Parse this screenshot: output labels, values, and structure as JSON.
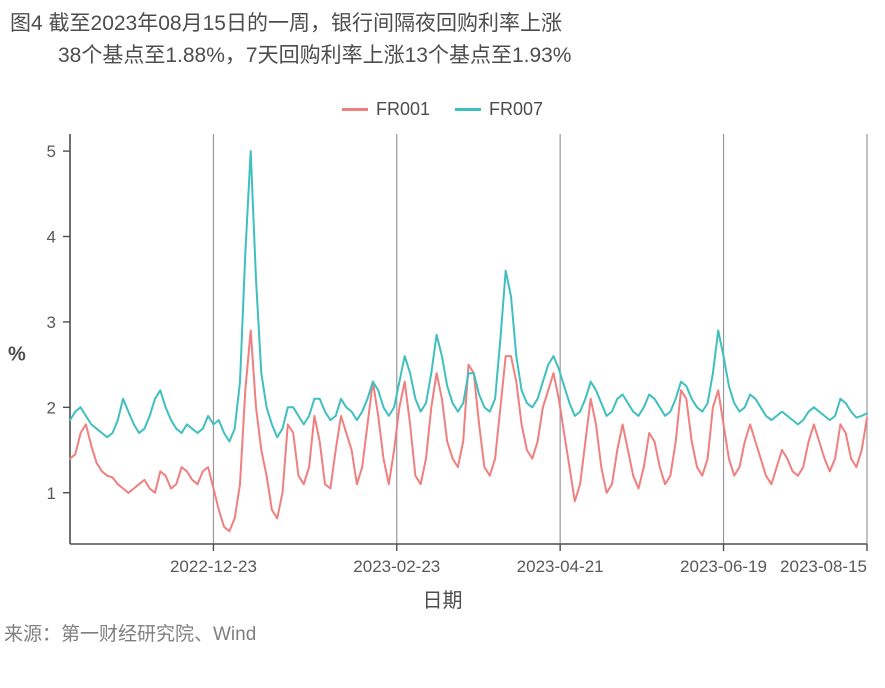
{
  "chart": {
    "type": "line",
    "title_line1": "图4 截至2023年08月15日的一周，银行间隔夜回购利率上涨",
    "title_line2": "38个基点至1.88%，7天回购利率上涨13个基点至1.93%",
    "title_fontsize": 21,
    "title_color": "#4d4d4d",
    "background_color": "#ffffff",
    "plot_background": "#ffffff",
    "ylabel": "%",
    "xlabel": "日期",
    "label_fontsize": 20,
    "ylim": [
      0.4,
      5.2
    ],
    "ytick_values": [
      1,
      2,
      3,
      4,
      5
    ],
    "xtick_labels": [
      "2022-12-23",
      "2023-02-23",
      "2023-04-21",
      "2023-06-19",
      "2023-08-15"
    ],
    "xtick_positions": [
      0.18,
      0.41,
      0.615,
      0.82,
      1.0
    ],
    "tick_fontsize": 17,
    "tick_color": "#595959",
    "grid_major_vcolor": "#999999",
    "grid_major_vwidth": 1.2,
    "axis_line_color": "#4d4d4d",
    "axis_line_width": 1.6,
    "line_width": 2,
    "legend": {
      "items": [
        {
          "label": "FR001",
          "color": "#f07f7f"
        },
        {
          "label": "FR007",
          "color": "#3fbfbf"
        }
      ],
      "position": "top",
      "fontsize": 18
    },
    "series": {
      "FR001": {
        "color": "#f07f7f",
        "data": [
          1.4,
          1.45,
          1.7,
          1.8,
          1.55,
          1.35,
          1.25,
          1.2,
          1.18,
          1.1,
          1.05,
          1.0,
          1.05,
          1.1,
          1.15,
          1.05,
          1.0,
          1.25,
          1.2,
          1.05,
          1.1,
          1.3,
          1.25,
          1.15,
          1.1,
          1.25,
          1.3,
          1.05,
          0.8,
          0.6,
          0.55,
          0.7,
          1.1,
          2.2,
          2.9,
          2.0,
          1.5,
          1.2,
          0.8,
          0.7,
          1.0,
          1.8,
          1.7,
          1.2,
          1.1,
          1.3,
          1.9,
          1.6,
          1.1,
          1.05,
          1.5,
          1.9,
          1.7,
          1.5,
          1.1,
          1.3,
          1.8,
          2.3,
          1.9,
          1.4,
          1.1,
          1.5,
          2.0,
          2.3,
          1.8,
          1.2,
          1.1,
          1.4,
          2.0,
          2.4,
          2.1,
          1.6,
          1.4,
          1.3,
          1.6,
          2.5,
          2.4,
          1.8,
          1.3,
          1.2,
          1.4,
          2.0,
          2.6,
          2.6,
          2.3,
          1.8,
          1.5,
          1.4,
          1.6,
          2.0,
          2.2,
          2.4,
          2.1,
          1.7,
          1.3,
          0.9,
          1.1,
          1.6,
          2.1,
          1.8,
          1.3,
          1.0,
          1.1,
          1.5,
          1.8,
          1.5,
          1.2,
          1.05,
          1.3,
          1.7,
          1.6,
          1.3,
          1.1,
          1.2,
          1.6,
          2.2,
          2.1,
          1.6,
          1.3,
          1.2,
          1.4,
          2.0,
          2.2,
          1.8,
          1.4,
          1.2,
          1.3,
          1.6,
          1.8,
          1.6,
          1.4,
          1.2,
          1.1,
          1.3,
          1.5,
          1.4,
          1.25,
          1.2,
          1.3,
          1.6,
          1.8,
          1.6,
          1.4,
          1.25,
          1.4,
          1.8,
          1.7,
          1.4,
          1.3,
          1.5,
          1.88
        ]
      },
      "FR007": {
        "color": "#3fbfbf",
        "data": [
          1.85,
          1.95,
          2.0,
          1.9,
          1.8,
          1.75,
          1.7,
          1.65,
          1.7,
          1.85,
          2.1,
          1.95,
          1.8,
          1.7,
          1.75,
          1.9,
          2.1,
          2.2,
          2.0,
          1.85,
          1.75,
          1.7,
          1.8,
          1.75,
          1.7,
          1.75,
          1.9,
          1.8,
          1.85,
          1.7,
          1.6,
          1.75,
          2.3,
          3.8,
          5.0,
          3.5,
          2.4,
          2.0,
          1.8,
          1.65,
          1.75,
          2.0,
          2.0,
          1.9,
          1.8,
          1.9,
          2.1,
          2.1,
          1.95,
          1.85,
          1.9,
          2.1,
          2.0,
          1.95,
          1.85,
          1.95,
          2.1,
          2.3,
          2.2,
          2.0,
          1.9,
          2.0,
          2.3,
          2.6,
          2.4,
          2.1,
          1.95,
          2.05,
          2.4,
          2.85,
          2.6,
          2.25,
          2.05,
          1.95,
          2.05,
          2.4,
          2.4,
          2.15,
          2.0,
          1.95,
          2.1,
          2.8,
          3.6,
          3.3,
          2.6,
          2.2,
          2.05,
          2.0,
          2.1,
          2.3,
          2.5,
          2.6,
          2.45,
          2.25,
          2.05,
          1.9,
          1.95,
          2.1,
          2.3,
          2.2,
          2.05,
          1.9,
          1.95,
          2.1,
          2.15,
          2.05,
          1.95,
          1.9,
          2.0,
          2.15,
          2.1,
          2.0,
          1.9,
          1.95,
          2.1,
          2.3,
          2.25,
          2.1,
          2.0,
          1.95,
          2.05,
          2.4,
          2.9,
          2.6,
          2.25,
          2.05,
          1.95,
          2.0,
          2.15,
          2.1,
          2.0,
          1.9,
          1.85,
          1.9,
          1.95,
          1.9,
          1.85,
          1.8,
          1.85,
          1.95,
          2.0,
          1.95,
          1.9,
          1.85,
          1.9,
          2.1,
          2.05,
          1.95,
          1.88,
          1.9,
          1.93
        ]
      }
    },
    "source": "来源：第一财经研究院、Wind"
  }
}
